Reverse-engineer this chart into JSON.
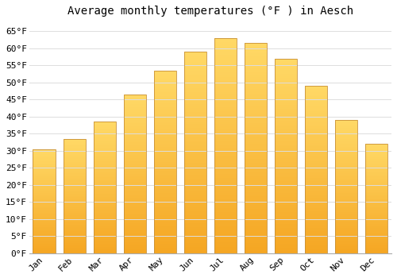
{
  "title": "Average monthly temperatures (°F ) in Aesch",
  "months": [
    "Jan",
    "Feb",
    "Mar",
    "Apr",
    "May",
    "Jun",
    "Jul",
    "Aug",
    "Sep",
    "Oct",
    "Nov",
    "Dec"
  ],
  "values": [
    30.5,
    33.5,
    38.5,
    46.5,
    53.5,
    59.0,
    63.0,
    61.5,
    57.0,
    49.0,
    39.0,
    32.0
  ],
  "bar_color_bottom": "#F5A623",
  "bar_color_top": "#FFD966",
  "bar_edge_color": "#C8913A",
  "ylim": [
    0,
    68
  ],
  "yticks": [
    0,
    5,
    10,
    15,
    20,
    25,
    30,
    35,
    40,
    45,
    50,
    55,
    60,
    65
  ],
  "background_color": "#FFFFFF",
  "grid_color": "#DDDDDD",
  "title_fontsize": 10,
  "tick_fontsize": 8,
  "font_family": "monospace",
  "bar_width": 0.75
}
